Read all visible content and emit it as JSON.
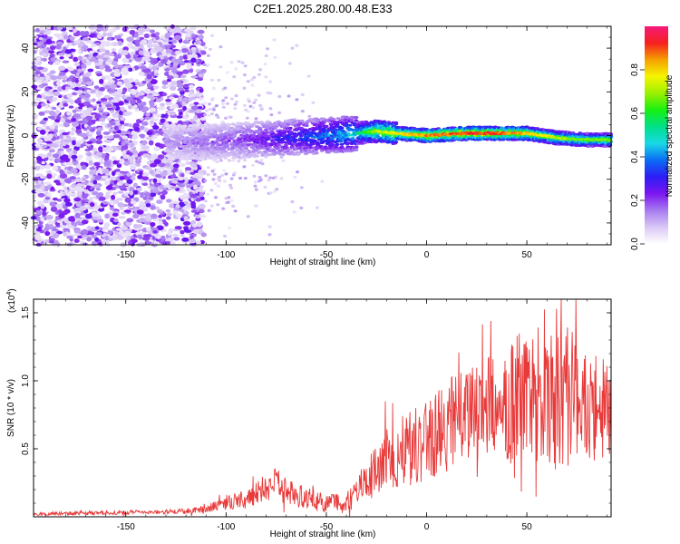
{
  "chart_data": [
    {
      "type": "heatmap",
      "title": "C2E1.2025.280.00.48.E33",
      "xlabel": "Height of straight line (km)",
      "ylabel": "Frequency (Hz)",
      "xlim": [
        -196,
        92
      ],
      "ylim": [
        -50,
        50
      ],
      "x_ticks": [
        -150,
        -100,
        -50,
        0,
        50
      ],
      "x_tick_labels": [
        "-150",
        "-100",
        "-50",
        "0",
        "50"
      ],
      "y_ticks": [
        -40,
        -20,
        0,
        20,
        40
      ],
      "y_tick_labels": [
        "-40",
        "-20",
        "0",
        "20",
        "40"
      ],
      "ridge": {
        "x": [
          -130,
          -110,
          -90,
          -70,
          -50,
          -35,
          -25,
          -15,
          0,
          20,
          35,
          50,
          65,
          80,
          92
        ],
        "frequency": [
          -3,
          -3,
          -2,
          -1,
          0,
          1,
          2,
          1,
          0,
          1,
          1,
          1,
          -1,
          -2,
          -2
        ],
        "peak_amplitude": [
          0.15,
          0.2,
          0.25,
          0.35,
          0.45,
          0.55,
          0.75,
          0.8,
          0.9,
          0.95,
          0.95,
          0.85,
          0.75,
          0.7,
          0.7
        ]
      },
      "colorbar": {
        "label": "Normalized spectral amplitude",
        "range": [
          0,
          1
        ],
        "ticks": [
          0.0,
          0.2,
          0.4,
          0.6,
          0.8
        ],
        "tick_labels": [
          "0.0",
          "0.2",
          "0.4",
          "0.6",
          "0.8"
        ],
        "colors": [
          "#ffffff",
          "#d9c8f5",
          "#a77bf0",
          "#7b16f0",
          "#2d1cf5",
          "#0a6cf5",
          "#19d9e6",
          "#00e08a",
          "#17f012",
          "#9cf000",
          "#f5f500",
          "#f5a000",
          "#f52020",
          "#f51a7a"
        ]
      }
    },
    {
      "type": "line",
      "xlabel": "Height of straight line (km)",
      "ylabel": "SNR (10 * v/v)",
      "y_scale_label": "(x10",
      "y_scale_exponent": "4",
      "xlim": [
        -196,
        92
      ],
      "ylim": [
        0,
        1.6
      ],
      "x_ticks": [
        -150,
        -100,
        -50,
        0,
        50
      ],
      "x_tick_labels": [
        "-150",
        "-100",
        "-50",
        "0",
        "50"
      ],
      "y_ticks": [
        0.5,
        1.0,
        1.5
      ],
      "y_tick_labels": [
        "0.5",
        "1.0",
        "1.5"
      ],
      "series": [
        {
          "name": "SNR",
          "color": "#e83a3a",
          "x": [
            -196,
            -180,
            -160,
            -140,
            -120,
            -110,
            -100,
            -90,
            -80,
            -75,
            -70,
            -60,
            -55,
            -50,
            -45,
            -40,
            -35,
            -30,
            -25,
            -20,
            -15,
            -10,
            -5,
            0,
            5,
            10,
            15,
            20,
            25,
            30,
            35,
            40,
            45,
            50,
            55,
            60,
            65,
            70,
            75,
            80,
            85,
            92
          ],
          "values": [
            0.02,
            0.025,
            0.03,
            0.035,
            0.04,
            0.06,
            0.1,
            0.14,
            0.2,
            0.24,
            0.18,
            0.14,
            0.12,
            0.1,
            0.11,
            0.1,
            0.18,
            0.28,
            0.34,
            0.42,
            0.48,
            0.5,
            0.54,
            0.56,
            0.62,
            0.66,
            0.72,
            0.76,
            0.8,
            0.82,
            0.86,
            0.82,
            0.88,
            0.92,
            0.95,
            0.98,
            0.94,
            0.9,
            0.86,
            0.82,
            0.8,
            0.8
          ],
          "spread": [
            0.01,
            0.015,
            0.015,
            0.015,
            0.02,
            0.03,
            0.05,
            0.07,
            0.1,
            0.12,
            0.1,
            0.08,
            0.08,
            0.07,
            0.08,
            0.08,
            0.1,
            0.15,
            0.2,
            0.25,
            0.28,
            0.3,
            0.3,
            0.3,
            0.32,
            0.33,
            0.35,
            0.35,
            0.36,
            0.38,
            0.4,
            0.42,
            0.45,
            0.5,
            0.55,
            0.6,
            0.6,
            0.55,
            0.5,
            0.45,
            0.4,
            0.35
          ]
        }
      ]
    }
  ]
}
